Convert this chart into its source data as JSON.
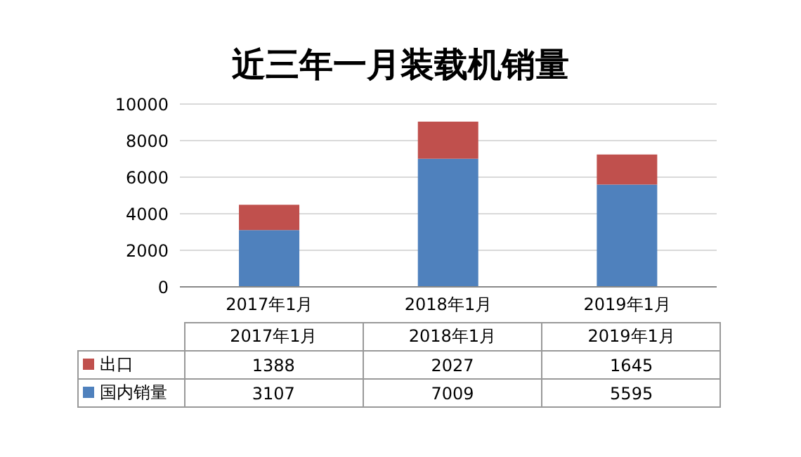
{
  "chart_data": {
    "type": "bar",
    "title": "近三年一月装载机销量",
    "categories": [
      "2017年1月",
      "2018年1月",
      "2019年1月"
    ],
    "series": [
      {
        "name": "国内销量",
        "color": "#4f81bd",
        "values": [
          3107,
          7009,
          5595
        ]
      },
      {
        "name": "出口",
        "color": "#c0504d",
        "values": [
          1388,
          2027,
          1645
        ]
      }
    ],
    "stacked": true,
    "ylim": [
      0,
      10000
    ],
    "yticks": [
      0,
      2000,
      4000,
      6000,
      8000,
      10000
    ],
    "grid": "y",
    "legend": "bottom",
    "data_labels": true
  }
}
